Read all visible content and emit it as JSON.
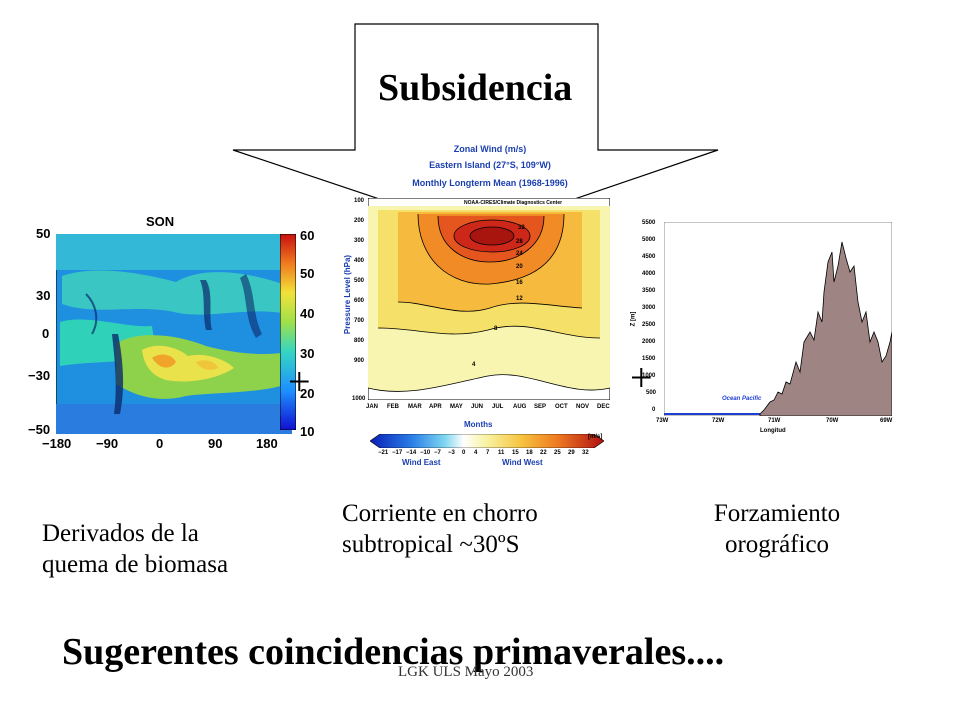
{
  "slide": {
    "title": "Subsidencia",
    "bottom_heading": "Sugerentes coincidencias primaverales....",
    "footer": "LGK ULS Mayo 2003",
    "plus_sign": "+"
  },
  "captions": {
    "biomass_line1": "Derivados de la",
    "biomass_line2": "quema de biomasa",
    "jet_line1": "Corriente en chorro",
    "jet_line2": "subtropical ~30ºS",
    "oro_line1": "Forzamiento",
    "oro_line2": "orográfico"
  },
  "map_panel": {
    "title": "SON",
    "y_ticks": [
      "50",
      "30",
      "0",
      "−30",
      "−50"
    ],
    "x_ticks": [
      "−180",
      "−90",
      "0",
      "90",
      "180"
    ],
    "colorbar_ticks": [
      "60",
      "50",
      "40",
      "30",
      "20",
      "10"
    ]
  },
  "wind_panel": {
    "title_line1": "Zonal Wind (m/s)",
    "title_line2": "Eastern Island  (27°S, 109°W)",
    "title_line3": "Monthly Longterm Mean (1968-1996)",
    "credit": "NOAA-CIRES/Climate Diagnostics Center",
    "ylabel": "Pressure Level (hPa)",
    "xlabel": "Months",
    "y_ticks": [
      "100",
      "200",
      "300",
      "400",
      "500",
      "600",
      "700",
      "800",
      "900",
      "1000"
    ],
    "months": [
      "JAN",
      "FEB",
      "MAR",
      "APR",
      "MAY",
      "JUN",
      "JUL",
      "AUG",
      "SEP",
      "OCT",
      "NOV",
      "DEC"
    ],
    "colorbar_ticks": [
      "−21",
      "−17",
      "−14",
      "−10",
      "−7",
      "−3",
      "0",
      "4",
      "7",
      "11",
      "15",
      "18",
      "22",
      "25",
      "29",
      "32"
    ],
    "colorbar_unit": "[m/s]",
    "colorbar_left": "Wind East",
    "colorbar_right": "Wind West",
    "contour_labels": [
      "32",
      "28",
      "24",
      "20",
      "16",
      "12",
      "8",
      "4"
    ]
  },
  "terrain_panel": {
    "ylabel": "Z [m]",
    "xlabel": "Longitud",
    "y_ticks": [
      "5500",
      "5000",
      "4500",
      "4000",
      "3500",
      "3000",
      "2500",
      "2000",
      "1500",
      "1000",
      "500",
      "0"
    ],
    "x_ticks": [
      "73W",
      "72W",
      "71W",
      "70W",
      "69W"
    ],
    "ocean_label": "Ocean Pacific"
  },
  "colors": {
    "terrain_fill": "#9e8583",
    "ocean_line": "#1f3fd0",
    "map_ocean": "#1f8fe0"
  }
}
